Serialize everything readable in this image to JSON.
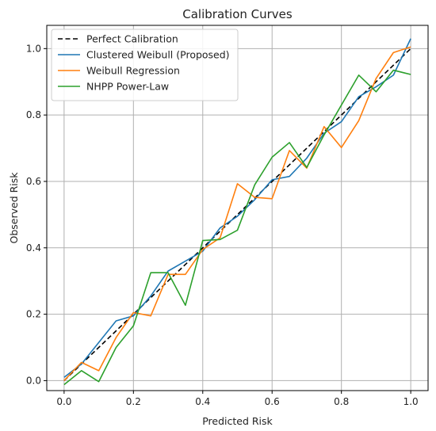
{
  "chart_data": {
    "type": "line",
    "title": "Calibration Curves",
    "xlabel": "Predicted Risk",
    "ylabel": "Observed Risk",
    "xlim": [
      -0.05,
      1.05
    ],
    "ylim": [
      -0.03,
      1.07
    ],
    "xticks": [
      0.0,
      0.2,
      0.4,
      0.6,
      0.8,
      1.0
    ],
    "xtick_labels": [
      "0.0",
      "0.2",
      "0.4",
      "0.6",
      "0.8",
      "1.0"
    ],
    "yticks": [
      0.0,
      0.2,
      0.4,
      0.6,
      0.8,
      1.0
    ],
    "ytick_labels": [
      "0.0",
      "0.2",
      "0.4",
      "0.6",
      "0.8",
      "1.0"
    ],
    "grid": true,
    "legend_position": "top-left",
    "series": [
      {
        "name": "Perfect Calibration",
        "color": "#000000",
        "style": "dashed",
        "x": [
          0.0,
          1.0
        ],
        "y": [
          0.0,
          1.0
        ]
      },
      {
        "name": "Clustered Weibull (Proposed)",
        "color": "#1f77b4",
        "style": "solid",
        "x": [
          0.0,
          0.05,
          0.1,
          0.15,
          0.2,
          0.25,
          0.3,
          0.35,
          0.4,
          0.45,
          0.5,
          0.55,
          0.6,
          0.65,
          0.7,
          0.75,
          0.8,
          0.85,
          0.9,
          0.95,
          1.0
        ],
        "y": [
          0.01,
          0.05,
          0.115,
          0.18,
          0.195,
          0.255,
          0.33,
          0.36,
          0.39,
          0.46,
          0.495,
          0.545,
          0.605,
          0.615,
          0.67,
          0.745,
          0.78,
          0.855,
          0.885,
          0.92,
          1.03
        ]
      },
      {
        "name": "Weibull Regression",
        "color": "#ff7f0e",
        "style": "solid",
        "x": [
          0.0,
          0.05,
          0.1,
          0.15,
          0.2,
          0.25,
          0.3,
          0.35,
          0.4,
          0.45,
          0.5,
          0.55,
          0.6,
          0.65,
          0.7,
          0.75,
          0.8,
          0.85,
          0.9,
          0.95,
          1.0
        ],
        "y": [
          0.0,
          0.055,
          0.03,
          0.13,
          0.205,
          0.195,
          0.32,
          0.32,
          0.395,
          0.43,
          0.593,
          0.552,
          0.548,
          0.693,
          0.64,
          0.765,
          0.702,
          0.783,
          0.91,
          0.988,
          1.005
        ]
      },
      {
        "name": "NHPP Power-Law",
        "color": "#2ca02c",
        "style": "solid",
        "x": [
          0.0,
          0.05,
          0.1,
          0.15,
          0.2,
          0.25,
          0.3,
          0.35,
          0.4,
          0.45,
          0.5,
          0.55,
          0.6,
          0.65,
          0.7,
          0.75,
          0.8,
          0.85,
          0.9,
          0.95,
          1.0
        ],
        "y": [
          -0.012,
          0.03,
          -0.003,
          0.1,
          0.165,
          0.325,
          0.325,
          0.227,
          0.422,
          0.425,
          0.453,
          0.59,
          0.673,
          0.717,
          0.642,
          0.74,
          0.83,
          0.92,
          0.87,
          0.935,
          0.922
        ]
      }
    ]
  }
}
